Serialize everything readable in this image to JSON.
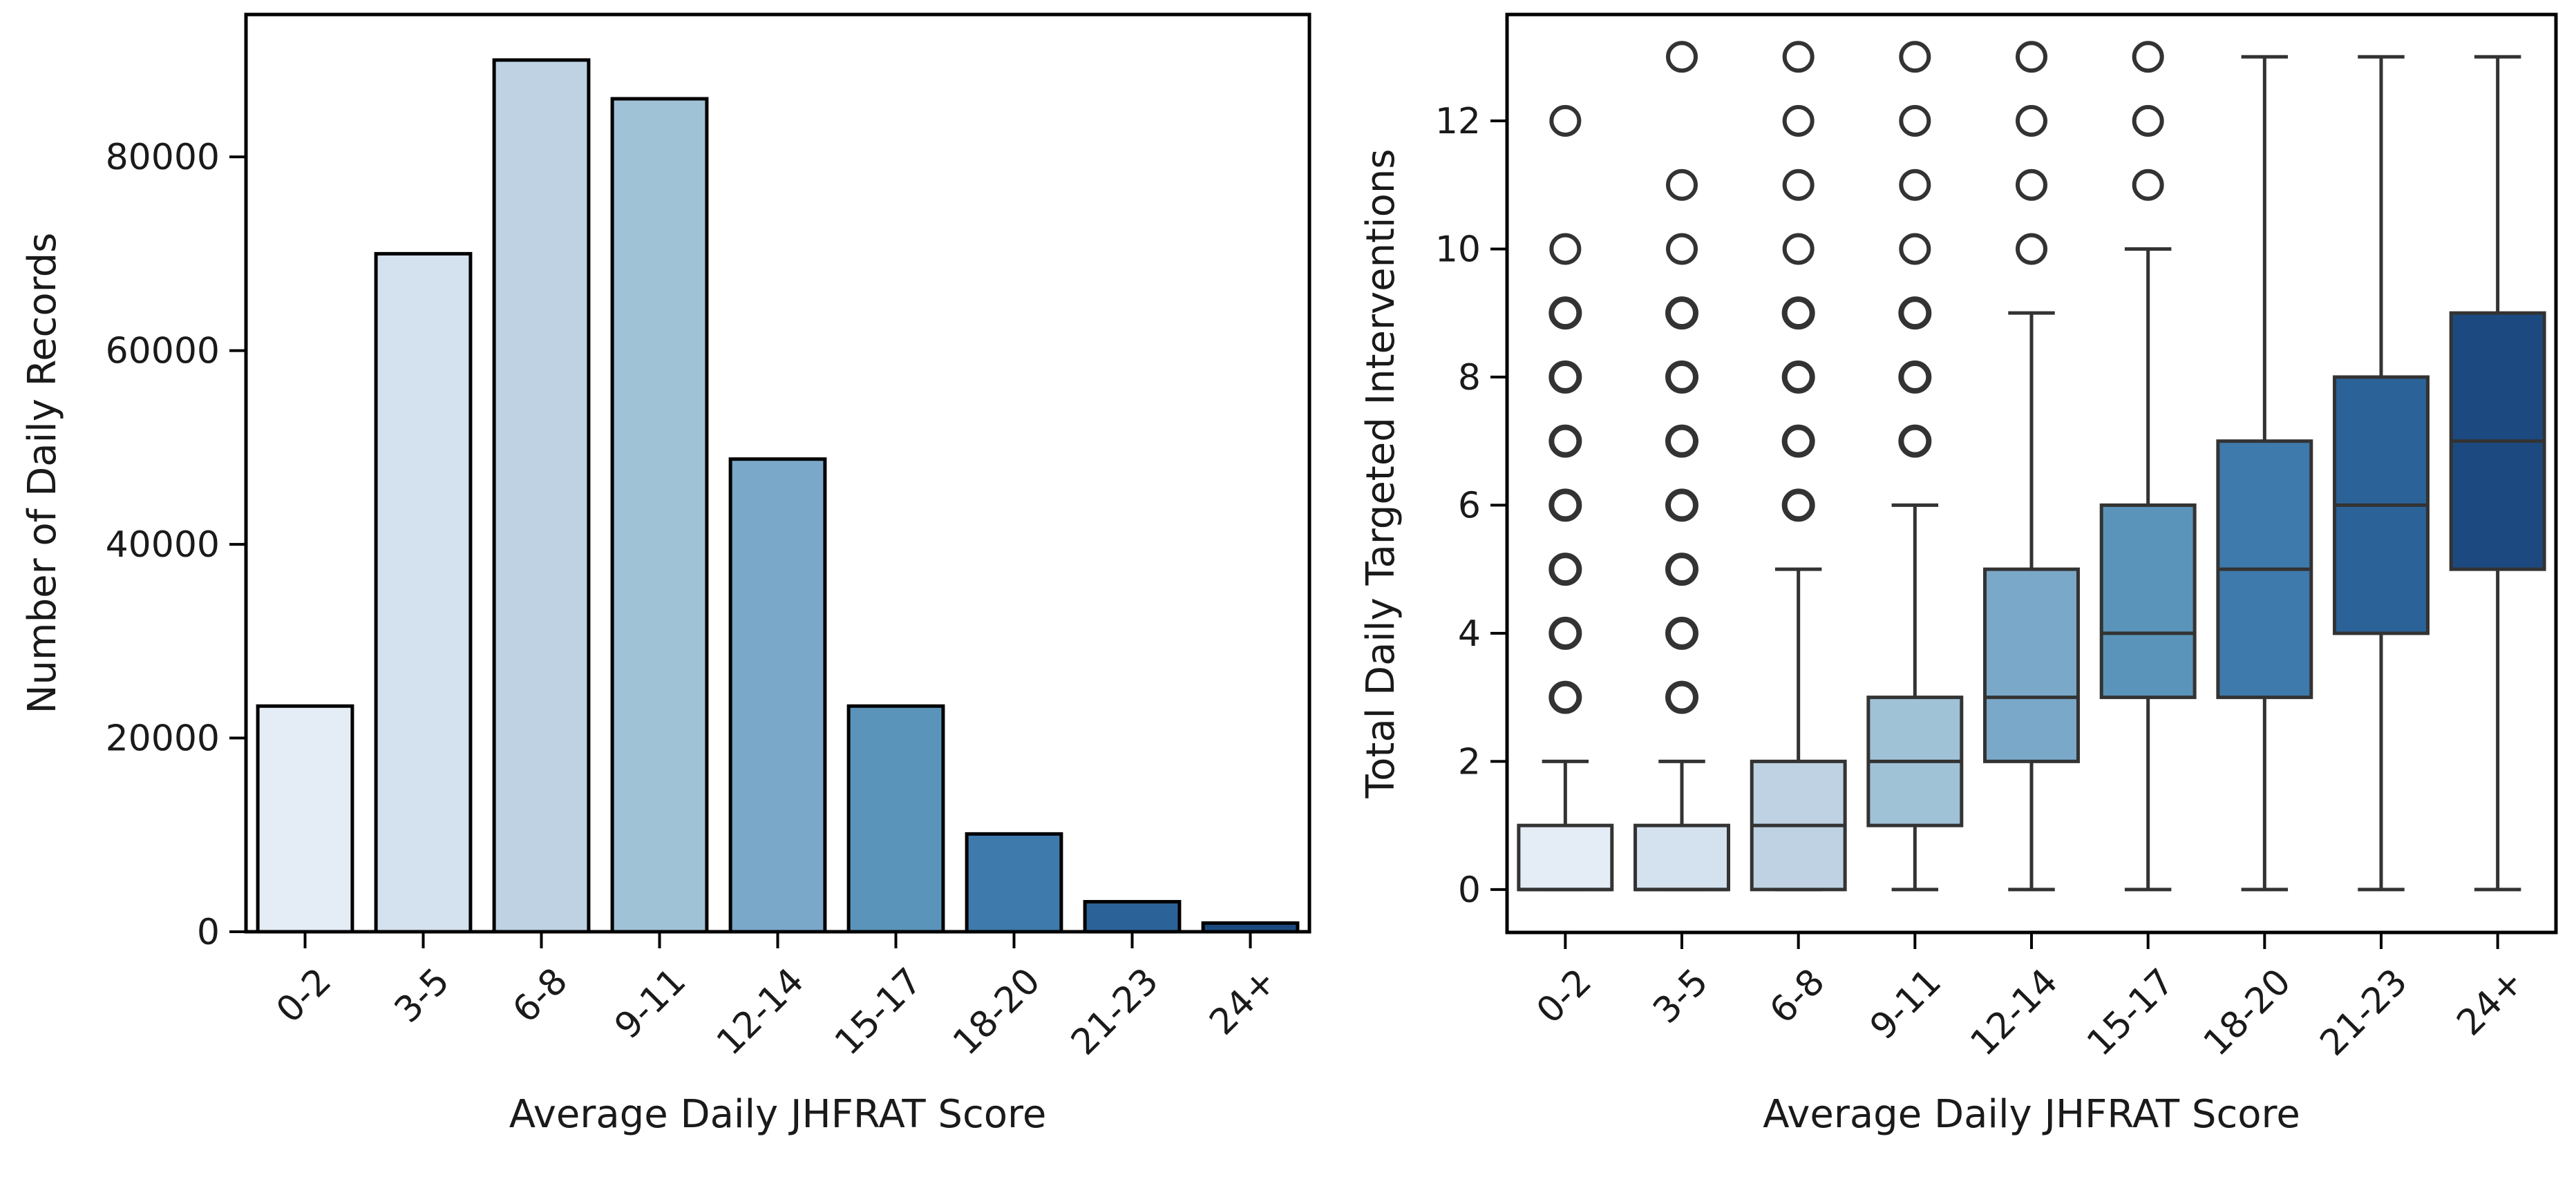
{
  "chart_data": [
    {
      "type": "bar",
      "title": "",
      "xlabel": "Average Daily JHFRAT Score",
      "ylabel": "Number of Daily Records",
      "categories": [
        "0-2",
        "3-5",
        "6-8",
        "9-11",
        "12-14",
        "15-17",
        "18-20",
        "21-23",
        "24+"
      ],
      "values": [
        23300,
        70000,
        90000,
        86000,
        48800,
        23300,
        10100,
        3100,
        900
      ],
      "ylim": [
        0,
        94700
      ],
      "yticks": [
        0,
        20000,
        40000,
        60000,
        80000
      ],
      "ytick_labels": [
        "0",
        "20000",
        "40000",
        "60000",
        "80000"
      ],
      "grid": false,
      "colors": [
        "#e4ecf5",
        "#d4e1ee",
        "#bed2e3",
        "#a0c2d7",
        "#7aa8c9",
        "#5b94ba",
        "#3e7aab",
        "#2b6399",
        "#1c4a80"
      ]
    },
    {
      "type": "box",
      "title": "",
      "xlabel": "Average Daily JHFRAT Score",
      "ylabel": "Total Daily Targeted Interventions",
      "categories": [
        "0-2",
        "3-5",
        "6-8",
        "9-11",
        "12-14",
        "15-17",
        "18-20",
        "21-23",
        "24+"
      ],
      "boxes": [
        {
          "whislo": 0,
          "q1": 0,
          "med": 0,
          "q3": 1,
          "whishi": 2,
          "fliers": [
            3,
            4,
            5,
            6,
            7,
            8,
            9,
            10,
            12
          ]
        },
        {
          "whislo": 0,
          "q1": 0,
          "med": 0,
          "q3": 1,
          "whishi": 2,
          "fliers": [
            3,
            4,
            5,
            6,
            7,
            8,
            9,
            10,
            11,
            13
          ]
        },
        {
          "whislo": 0,
          "q1": 0,
          "med": 1,
          "q3": 2,
          "whishi": 5,
          "fliers": [
            6,
            7,
            8,
            9,
            10,
            11,
            12,
            13
          ]
        },
        {
          "whislo": 0,
          "q1": 1,
          "med": 2,
          "q3": 3,
          "whishi": 6,
          "fliers": [
            7,
            8,
            9,
            10,
            11,
            12,
            13
          ]
        },
        {
          "whislo": 0,
          "q1": 2,
          "med": 3,
          "q3": 5,
          "whishi": 9,
          "fliers": [
            10,
            11,
            12,
            13
          ]
        },
        {
          "whislo": 0,
          "q1": 3,
          "med": 4,
          "q3": 6,
          "whishi": 10,
          "fliers": [
            11,
            12,
            13
          ]
        },
        {
          "whislo": 0,
          "q1": 3,
          "med": 5,
          "q3": 7,
          "whishi": 13,
          "fliers": []
        },
        {
          "whislo": 0,
          "q1": 4,
          "med": 6,
          "q3": 8,
          "whishi": 13,
          "fliers": []
        },
        {
          "whislo": 0,
          "q1": 5,
          "med": 7,
          "q3": 9,
          "whishi": 13,
          "fliers": []
        }
      ],
      "ylim": [
        -0.67,
        13.66
      ],
      "yticks": [
        0,
        2,
        4,
        6,
        8,
        10,
        12
      ],
      "ytick_labels": [
        "0",
        "2",
        "4",
        "6",
        "8",
        "10",
        "12"
      ],
      "grid": false,
      "colors": [
        "#e4ecf5",
        "#d4e1ee",
        "#bed2e3",
        "#a0c2d7",
        "#7aa8c9",
        "#5b94ba",
        "#3e7aab",
        "#2b6399",
        "#1c4a80"
      ],
      "line_color": "#333333"
    }
  ]
}
